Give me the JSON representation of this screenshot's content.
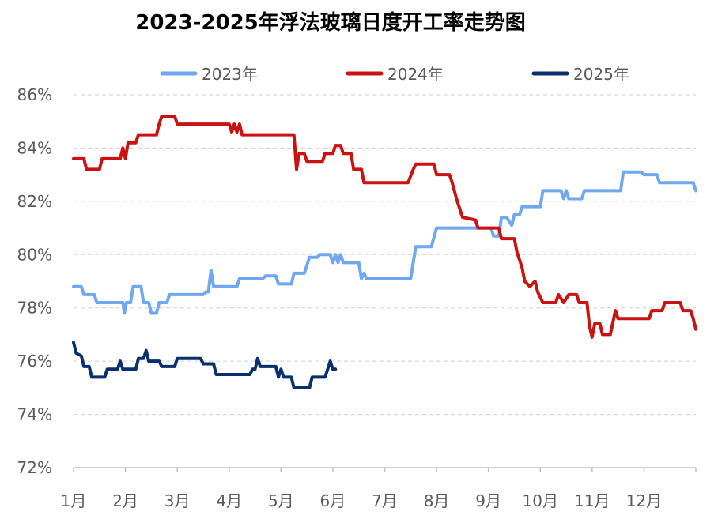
{
  "chart_data": {
    "type": "line",
    "title": "2023-2025年浮法玻璃日度开工率走势图",
    "y_tick_labels": [
      "72%",
      "74%",
      "76%",
      "78%",
      "80%",
      "82%",
      "84%",
      "86%"
    ],
    "x_tick_labels": [
      "1月",
      "2月",
      "3月",
      "4月",
      "5月",
      "6月",
      "7月",
      "8月",
      "9月",
      "10月",
      "11月",
      "12月"
    ],
    "ylim": [
      72,
      86
    ],
    "xlim": [
      1,
      13
    ],
    "x_unit": "month",
    "grid": true,
    "legend_position": "top",
    "series": [
      {
        "name": "2023年",
        "color": "#6fa8f0",
        "points": [
          [
            1.0,
            78.8
          ],
          [
            1.15,
            78.8
          ],
          [
            1.2,
            78.5
          ],
          [
            1.4,
            78.5
          ],
          [
            1.45,
            78.2
          ],
          [
            1.95,
            78.2
          ],
          [
            1.98,
            77.8
          ],
          [
            2.02,
            78.2
          ],
          [
            2.1,
            78.2
          ],
          [
            2.15,
            78.8
          ],
          [
            2.3,
            78.8
          ],
          [
            2.35,
            78.2
          ],
          [
            2.45,
            78.2
          ],
          [
            2.5,
            77.8
          ],
          [
            2.6,
            77.8
          ],
          [
            2.65,
            78.2
          ],
          [
            2.8,
            78.2
          ],
          [
            2.85,
            78.5
          ],
          [
            3.5,
            78.5
          ],
          [
            3.55,
            78.6
          ],
          [
            3.6,
            78.6
          ],
          [
            3.65,
            79.4
          ],
          [
            3.7,
            78.8
          ],
          [
            4.15,
            78.8
          ],
          [
            4.2,
            79.1
          ],
          [
            4.65,
            79.1
          ],
          [
            4.7,
            79.2
          ],
          [
            4.9,
            79.2
          ],
          [
            4.95,
            78.9
          ],
          [
            5.2,
            78.9
          ],
          [
            5.25,
            79.3
          ],
          [
            5.45,
            79.3
          ],
          [
            5.55,
            79.9
          ],
          [
            5.7,
            79.9
          ],
          [
            5.75,
            80.0
          ],
          [
            5.95,
            80.0
          ],
          [
            6.0,
            79.7
          ],
          [
            6.05,
            80.0
          ],
          [
            6.1,
            79.7
          ],
          [
            6.15,
            80.0
          ],
          [
            6.2,
            79.7
          ],
          [
            6.5,
            79.7
          ],
          [
            6.55,
            79.1
          ],
          [
            6.6,
            79.3
          ],
          [
            6.65,
            79.1
          ],
          [
            7.5,
            79.1
          ],
          [
            7.6,
            80.3
          ],
          [
            7.9,
            80.3
          ],
          [
            8.0,
            81.0
          ],
          [
            9.05,
            81.0
          ],
          [
            9.1,
            80.7
          ],
          [
            9.2,
            80.7
          ],
          [
            9.25,
            81.4
          ],
          [
            9.35,
            81.4
          ],
          [
            9.45,
            81.1
          ],
          [
            9.5,
            81.5
          ],
          [
            9.6,
            81.5
          ],
          [
            9.65,
            81.8
          ],
          [
            10.0,
            81.8
          ],
          [
            10.05,
            82.4
          ],
          [
            10.4,
            82.4
          ],
          [
            10.45,
            82.1
          ],
          [
            10.5,
            82.4
          ],
          [
            10.55,
            82.1
          ],
          [
            10.8,
            82.1
          ],
          [
            10.85,
            82.4
          ],
          [
            11.55,
            82.4
          ],
          [
            11.6,
            83.1
          ],
          [
            11.95,
            83.1
          ],
          [
            12.0,
            83.0
          ],
          [
            12.25,
            83.0
          ],
          [
            12.3,
            82.7
          ],
          [
            12.95,
            82.7
          ],
          [
            13.0,
            82.4
          ]
        ]
      },
      {
        "name": "2024年",
        "color": "#cc1111",
        "points": [
          [
            1.0,
            83.6
          ],
          [
            1.2,
            83.6
          ],
          [
            1.25,
            83.2
          ],
          [
            1.5,
            83.2
          ],
          [
            1.55,
            83.6
          ],
          [
            1.9,
            83.6
          ],
          [
            1.95,
            84.0
          ],
          [
            2.0,
            83.6
          ],
          [
            2.05,
            84.2
          ],
          [
            2.2,
            84.2
          ],
          [
            2.25,
            84.5
          ],
          [
            2.6,
            84.5
          ],
          [
            2.65,
            84.9
          ],
          [
            2.7,
            85.2
          ],
          [
            2.95,
            85.2
          ],
          [
            3.0,
            84.9
          ],
          [
            4.0,
            84.9
          ],
          [
            4.05,
            84.6
          ],
          [
            4.1,
            84.9
          ],
          [
            4.15,
            84.6
          ],
          [
            4.2,
            84.9
          ],
          [
            4.25,
            84.5
          ],
          [
            5.25,
            84.5
          ],
          [
            5.3,
            83.2
          ],
          [
            5.35,
            83.8
          ],
          [
            5.45,
            83.8
          ],
          [
            5.5,
            83.5
          ],
          [
            5.8,
            83.5
          ],
          [
            5.85,
            83.8
          ],
          [
            6.0,
            83.8
          ],
          [
            6.05,
            84.1
          ],
          [
            6.15,
            84.1
          ],
          [
            6.2,
            83.8
          ],
          [
            6.35,
            83.8
          ],
          [
            6.4,
            83.2
          ],
          [
            6.55,
            83.2
          ],
          [
            6.6,
            82.7
          ],
          [
            7.45,
            82.7
          ],
          [
            7.55,
            83.2
          ],
          [
            7.6,
            83.4
          ],
          [
            7.95,
            83.4
          ],
          [
            8.0,
            83.0
          ],
          [
            8.25,
            83.0
          ],
          [
            8.3,
            82.7
          ],
          [
            8.4,
            82.0
          ],
          [
            8.5,
            81.4
          ],
          [
            8.75,
            81.3
          ],
          [
            8.8,
            81.0
          ],
          [
            9.2,
            81.0
          ],
          [
            9.25,
            80.6
          ],
          [
            9.5,
            80.6
          ],
          [
            9.55,
            80.1
          ],
          [
            9.65,
            79.5
          ],
          [
            9.7,
            79.0
          ],
          [
            9.8,
            78.8
          ],
          [
            9.9,
            79.0
          ],
          [
            9.95,
            78.6
          ],
          [
            10.05,
            78.2
          ],
          [
            10.3,
            78.2
          ],
          [
            10.35,
            78.5
          ],
          [
            10.45,
            78.2
          ],
          [
            10.55,
            78.5
          ],
          [
            10.7,
            78.5
          ],
          [
            10.75,
            78.2
          ],
          [
            10.9,
            78.2
          ],
          [
            10.95,
            77.3
          ],
          [
            11.0,
            76.9
          ],
          [
            11.05,
            77.4
          ],
          [
            11.15,
            77.4
          ],
          [
            11.2,
            77.0
          ],
          [
            11.35,
            77.0
          ],
          [
            11.45,
            77.9
          ],
          [
            11.5,
            77.6
          ],
          [
            12.1,
            77.6
          ],
          [
            12.15,
            77.9
          ],
          [
            12.35,
            77.9
          ],
          [
            12.4,
            78.2
          ],
          [
            12.7,
            78.2
          ],
          [
            12.75,
            77.9
          ],
          [
            12.9,
            77.9
          ],
          [
            12.95,
            77.6
          ],
          [
            13.0,
            77.2
          ]
        ]
      },
      {
        "name": "2025年",
        "color": "#0a2f6e",
        "points": [
          [
            1.0,
            76.7
          ],
          [
            1.05,
            76.3
          ],
          [
            1.15,
            76.2
          ],
          [
            1.2,
            75.8
          ],
          [
            1.3,
            75.8
          ],
          [
            1.35,
            75.4
          ],
          [
            1.6,
            75.4
          ],
          [
            1.65,
            75.7
          ],
          [
            1.85,
            75.7
          ],
          [
            1.9,
            76.0
          ],
          [
            1.95,
            75.7
          ],
          [
            2.2,
            75.7
          ],
          [
            2.25,
            76.1
          ],
          [
            2.35,
            76.1
          ],
          [
            2.4,
            76.4
          ],
          [
            2.45,
            76.0
          ],
          [
            2.65,
            76.0
          ],
          [
            2.7,
            75.8
          ],
          [
            2.95,
            75.8
          ],
          [
            3.0,
            76.1
          ],
          [
            3.45,
            76.1
          ],
          [
            3.5,
            75.9
          ],
          [
            3.7,
            75.9
          ],
          [
            3.75,
            75.5
          ],
          [
            4.4,
            75.5
          ],
          [
            4.45,
            75.7
          ],
          [
            4.5,
            75.7
          ],
          [
            4.55,
            76.1
          ],
          [
            4.6,
            75.8
          ],
          [
            4.9,
            75.8
          ],
          [
            4.95,
            75.4
          ],
          [
            5.0,
            75.7
          ],
          [
            5.05,
            75.4
          ],
          [
            5.2,
            75.4
          ],
          [
            5.25,
            75.0
          ],
          [
            5.55,
            75.0
          ],
          [
            5.6,
            75.4
          ],
          [
            5.85,
            75.4
          ],
          [
            5.9,
            75.7
          ],
          [
            5.95,
            76.0
          ],
          [
            6.0,
            75.7
          ],
          [
            6.05,
            75.7
          ]
        ]
      }
    ]
  }
}
